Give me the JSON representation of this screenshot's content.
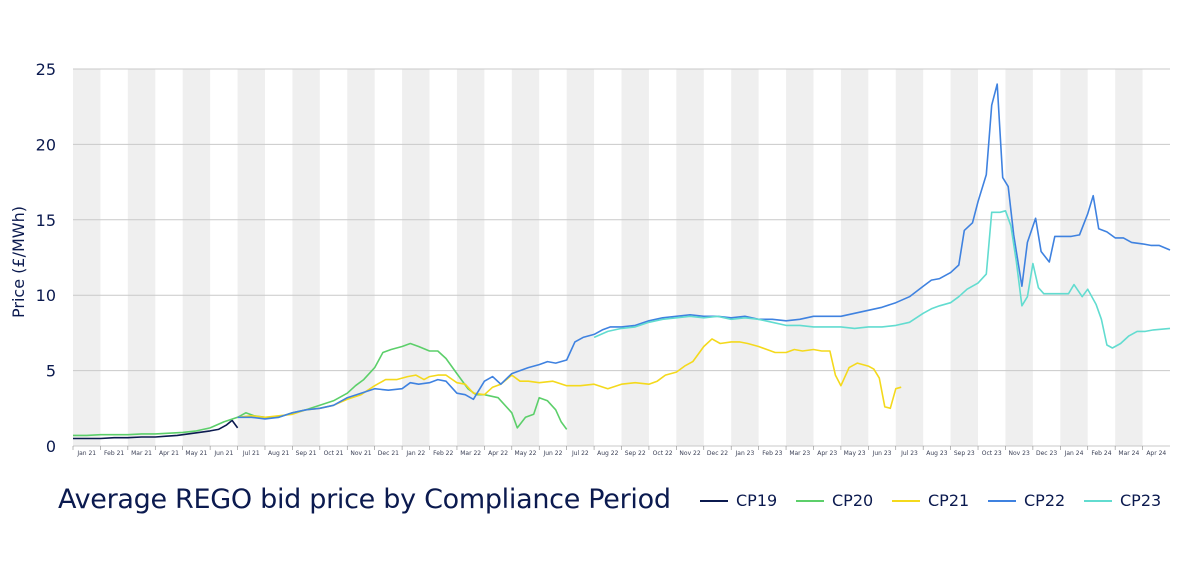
{
  "chart_data": {
    "type": "line",
    "title": "Average REGO bid price by Compliance Period",
    "ylabel": "Price (£/MWh)",
    "xlabel": "",
    "ylim": [
      0,
      25
    ],
    "yticks": [
      0,
      5,
      10,
      15,
      20,
      25
    ],
    "grid": "horizontal",
    "background_bands": "alternating months",
    "legend_position": "bottom-right",
    "x_ticks": [
      "Jan 21",
      "Feb 21",
      "Mar 21",
      "Apr 21",
      "May 21",
      "Jun 21",
      "Jul 21",
      "Aug 21",
      "Sep 21",
      "Oct 21",
      "Nov 21",
      "Dec 21",
      "Jan 22",
      "Feb 22",
      "Mar 22",
      "Apr 22",
      "May 22",
      "Jun 22",
      "Jul 22",
      "Aug 22",
      "Sep 22",
      "Oct 22",
      "Nov 22",
      "Dec 22",
      "Jan 23",
      "Feb 23",
      "Mar 23",
      "Apr 23",
      "May 23",
      "Jun 23",
      "Jul 23",
      "Aug 23",
      "Sep 23",
      "Oct 23",
      "Nov 23",
      "Dec 23",
      "Jan 24",
      "Feb 24",
      "Mar 24",
      "Apr 24"
    ],
    "series": [
      {
        "name": "CP19",
        "color": "#0b1a4f",
        "points": [
          [
            0.0,
            0.5
          ],
          [
            0.5,
            0.5
          ],
          [
            1.0,
            0.5
          ],
          [
            1.5,
            0.55
          ],
          [
            2.0,
            0.55
          ],
          [
            2.5,
            0.6
          ],
          [
            3.0,
            0.6
          ],
          [
            3.4,
            0.65
          ],
          [
            3.8,
            0.7
          ],
          [
            4.2,
            0.8
          ],
          [
            4.6,
            0.9
          ],
          [
            5.0,
            1.0
          ],
          [
            5.3,
            1.1
          ],
          [
            5.6,
            1.4
          ],
          [
            5.8,
            1.7
          ],
          [
            6.0,
            1.2
          ]
        ]
      },
      {
        "name": "CP20",
        "color": "#5ccf6a",
        "points": [
          [
            0.0,
            0.7
          ],
          [
            0.5,
            0.7
          ],
          [
            1.0,
            0.75
          ],
          [
            1.5,
            0.75
          ],
          [
            2.0,
            0.75
          ],
          [
            2.5,
            0.8
          ],
          [
            3.0,
            0.8
          ],
          [
            3.5,
            0.85
          ],
          [
            4.0,
            0.9
          ],
          [
            4.5,
            1.0
          ],
          [
            5.0,
            1.2
          ],
          [
            5.5,
            1.6
          ],
          [
            6.0,
            1.9
          ],
          [
            6.3,
            2.2
          ],
          [
            6.6,
            2.0
          ],
          [
            7.0,
            1.9
          ],
          [
            7.5,
            1.9
          ],
          [
            8.0,
            2.2
          ],
          [
            8.5,
            2.4
          ],
          [
            9.0,
            2.7
          ],
          [
            9.5,
            3.0
          ],
          [
            10.0,
            3.5
          ],
          [
            10.3,
            4.0
          ],
          [
            10.6,
            4.4
          ],
          [
            11.0,
            5.2
          ],
          [
            11.3,
            6.2
          ],
          [
            11.6,
            6.4
          ],
          [
            12.0,
            6.6
          ],
          [
            12.3,
            6.8
          ],
          [
            12.6,
            6.6
          ],
          [
            13.0,
            6.3
          ],
          [
            13.3,
            6.3
          ],
          [
            13.6,
            5.8
          ],
          [
            14.0,
            4.8
          ],
          [
            14.4,
            3.8
          ],
          [
            14.7,
            3.4
          ],
          [
            15.0,
            3.4
          ],
          [
            15.5,
            3.2
          ],
          [
            16.0,
            2.2
          ],
          [
            16.2,
            1.2
          ],
          [
            16.5,
            1.9
          ],
          [
            16.8,
            2.1
          ],
          [
            17.0,
            3.2
          ],
          [
            17.3,
            3.0
          ],
          [
            17.6,
            2.4
          ],
          [
            17.8,
            1.6
          ],
          [
            18.0,
            1.1
          ]
        ]
      },
      {
        "name": "CP21",
        "color": "#f4d91c",
        "points": [
          [
            6.0,
            1.9
          ],
          [
            6.5,
            2.0
          ],
          [
            7.0,
            1.9
          ],
          [
            7.5,
            2.0
          ],
          [
            8.0,
            2.1
          ],
          [
            8.5,
            2.4
          ],
          [
            9.0,
            2.5
          ],
          [
            9.5,
            2.7
          ],
          [
            10.0,
            3.1
          ],
          [
            10.5,
            3.4
          ],
          [
            11.0,
            4.0
          ],
          [
            11.4,
            4.4
          ],
          [
            11.8,
            4.4
          ],
          [
            12.2,
            4.6
          ],
          [
            12.5,
            4.7
          ],
          [
            12.8,
            4.4
          ],
          [
            13.0,
            4.6
          ],
          [
            13.3,
            4.7
          ],
          [
            13.6,
            4.7
          ],
          [
            14.0,
            4.2
          ],
          [
            14.3,
            4.1
          ],
          [
            14.6,
            3.5
          ],
          [
            15.0,
            3.4
          ],
          [
            15.3,
            3.9
          ],
          [
            15.6,
            4.1
          ],
          [
            16.0,
            4.7
          ],
          [
            16.3,
            4.3
          ],
          [
            16.6,
            4.3
          ],
          [
            17.0,
            4.2
          ],
          [
            17.5,
            4.3
          ],
          [
            18.0,
            4.0
          ],
          [
            18.5,
            4.0
          ],
          [
            19.0,
            4.1
          ],
          [
            19.5,
            3.8
          ],
          [
            20.0,
            4.1
          ],
          [
            20.5,
            4.2
          ],
          [
            21.0,
            4.1
          ],
          [
            21.3,
            4.3
          ],
          [
            21.6,
            4.7
          ],
          [
            22.0,
            4.9
          ],
          [
            22.3,
            5.3
          ],
          [
            22.6,
            5.6
          ],
          [
            23.0,
            6.6
          ],
          [
            23.3,
            7.1
          ],
          [
            23.6,
            6.8
          ],
          [
            24.0,
            6.9
          ],
          [
            24.3,
            6.9
          ],
          [
            24.6,
            6.8
          ],
          [
            25.0,
            6.6
          ],
          [
            25.3,
            6.4
          ],
          [
            25.6,
            6.2
          ],
          [
            26.0,
            6.2
          ],
          [
            26.3,
            6.4
          ],
          [
            26.6,
            6.3
          ],
          [
            27.0,
            6.4
          ],
          [
            27.3,
            6.3
          ],
          [
            27.6,
            6.3
          ],
          [
            27.8,
            4.7
          ],
          [
            28.0,
            4.0
          ],
          [
            28.3,
            5.2
          ],
          [
            28.6,
            5.5
          ],
          [
            29.0,
            5.3
          ],
          [
            29.2,
            5.1
          ],
          [
            29.4,
            4.5
          ],
          [
            29.6,
            2.6
          ],
          [
            29.8,
            2.5
          ],
          [
            30.0,
            3.8
          ],
          [
            30.2,
            3.9
          ]
        ]
      },
      {
        "name": "CP22",
        "color": "#3f82e0",
        "points": [
          [
            6.0,
            1.9
          ],
          [
            6.5,
            1.9
          ],
          [
            7.0,
            1.8
          ],
          [
            7.5,
            1.9
          ],
          [
            8.0,
            2.2
          ],
          [
            8.5,
            2.4
          ],
          [
            9.0,
            2.5
          ],
          [
            9.5,
            2.7
          ],
          [
            10.0,
            3.2
          ],
          [
            10.5,
            3.5
          ],
          [
            11.0,
            3.8
          ],
          [
            11.5,
            3.7
          ],
          [
            12.0,
            3.8
          ],
          [
            12.3,
            4.2
          ],
          [
            12.6,
            4.1
          ],
          [
            13.0,
            4.2
          ],
          [
            13.3,
            4.4
          ],
          [
            13.6,
            4.3
          ],
          [
            14.0,
            3.5
          ],
          [
            14.3,
            3.4
          ],
          [
            14.6,
            3.1
          ],
          [
            15.0,
            4.3
          ],
          [
            15.3,
            4.6
          ],
          [
            15.6,
            4.1
          ],
          [
            16.0,
            4.8
          ],
          [
            16.3,
            5.0
          ],
          [
            16.6,
            5.2
          ],
          [
            17.0,
            5.4
          ],
          [
            17.3,
            5.6
          ],
          [
            17.6,
            5.5
          ],
          [
            18.0,
            5.7
          ],
          [
            18.3,
            6.9
          ],
          [
            18.6,
            7.2
          ],
          [
            19.0,
            7.4
          ],
          [
            19.3,
            7.7
          ],
          [
            19.6,
            7.9
          ],
          [
            20.0,
            7.9
          ],
          [
            20.5,
            8.0
          ],
          [
            21.0,
            8.3
          ],
          [
            21.5,
            8.5
          ],
          [
            22.0,
            8.6
          ],
          [
            22.5,
            8.7
          ],
          [
            23.0,
            8.6
          ],
          [
            23.5,
            8.6
          ],
          [
            24.0,
            8.5
          ],
          [
            24.5,
            8.6
          ],
          [
            25.0,
            8.4
          ],
          [
            25.5,
            8.4
          ],
          [
            26.0,
            8.3
          ],
          [
            26.5,
            8.4
          ],
          [
            27.0,
            8.6
          ],
          [
            27.5,
            8.6
          ],
          [
            28.0,
            8.6
          ],
          [
            28.5,
            8.8
          ],
          [
            29.0,
            9.0
          ],
          [
            29.5,
            9.2
          ],
          [
            30.0,
            9.5
          ],
          [
            30.5,
            9.9
          ],
          [
            31.0,
            10.6
          ],
          [
            31.3,
            11.0
          ],
          [
            31.6,
            11.1
          ],
          [
            32.0,
            11.5
          ],
          [
            32.3,
            12.0
          ],
          [
            32.5,
            14.3
          ],
          [
            32.8,
            14.8
          ],
          [
            33.0,
            16.2
          ],
          [
            33.3,
            18.0
          ],
          [
            33.5,
            22.6
          ],
          [
            33.7,
            24.0
          ],
          [
            33.9,
            17.8
          ],
          [
            34.1,
            17.2
          ],
          [
            34.3,
            14.0
          ],
          [
            34.6,
            10.6
          ],
          [
            34.8,
            13.5
          ],
          [
            35.1,
            15.1
          ],
          [
            35.3,
            12.9
          ],
          [
            35.6,
            12.2
          ],
          [
            35.8,
            13.9
          ],
          [
            36.1,
            13.9
          ],
          [
            36.4,
            13.9
          ],
          [
            36.7,
            14.0
          ],
          [
            37.0,
            15.4
          ],
          [
            37.2,
            16.6
          ],
          [
            37.4,
            14.4
          ],
          [
            37.7,
            14.2
          ],
          [
            38.0,
            13.8
          ],
          [
            38.3,
            13.8
          ],
          [
            38.6,
            13.5
          ],
          [
            39.0,
            13.4
          ],
          [
            39.3,
            13.3
          ],
          [
            39.6,
            13.3
          ],
          [
            40.0,
            13.0
          ]
        ]
      },
      {
        "name": "CP23",
        "color": "#62dcd0",
        "points": [
          [
            19.0,
            7.2
          ],
          [
            19.5,
            7.6
          ],
          [
            20.0,
            7.8
          ],
          [
            20.5,
            7.9
          ],
          [
            21.0,
            8.2
          ],
          [
            21.5,
            8.4
          ],
          [
            22.0,
            8.5
          ],
          [
            22.5,
            8.6
          ],
          [
            23.0,
            8.5
          ],
          [
            23.5,
            8.6
          ],
          [
            24.0,
            8.4
          ],
          [
            24.5,
            8.5
          ],
          [
            25.0,
            8.4
          ],
          [
            25.5,
            8.2
          ],
          [
            26.0,
            8.0
          ],
          [
            26.5,
            8.0
          ],
          [
            27.0,
            7.9
          ],
          [
            27.5,
            7.9
          ],
          [
            28.0,
            7.9
          ],
          [
            28.5,
            7.8
          ],
          [
            29.0,
            7.9
          ],
          [
            29.5,
            7.9
          ],
          [
            30.0,
            8.0
          ],
          [
            30.5,
            8.2
          ],
          [
            31.0,
            8.8
          ],
          [
            31.3,
            9.1
          ],
          [
            31.6,
            9.3
          ],
          [
            32.0,
            9.5
          ],
          [
            32.3,
            9.9
          ],
          [
            32.6,
            10.4
          ],
          [
            33.0,
            10.8
          ],
          [
            33.3,
            11.4
          ],
          [
            33.5,
            15.5
          ],
          [
            33.8,
            15.5
          ],
          [
            34.0,
            15.6
          ],
          [
            34.2,
            14.6
          ],
          [
            34.4,
            12.2
          ],
          [
            34.6,
            9.3
          ],
          [
            34.8,
            9.9
          ],
          [
            35.0,
            12.1
          ],
          [
            35.2,
            10.5
          ],
          [
            35.4,
            10.1
          ],
          [
            35.7,
            10.1
          ],
          [
            36.0,
            10.1
          ],
          [
            36.3,
            10.1
          ],
          [
            36.5,
            10.7
          ],
          [
            36.8,
            9.9
          ],
          [
            37.0,
            10.4
          ],
          [
            37.3,
            9.4
          ],
          [
            37.5,
            8.4
          ],
          [
            37.7,
            6.7
          ],
          [
            37.9,
            6.5
          ],
          [
            38.2,
            6.8
          ],
          [
            38.5,
            7.3
          ],
          [
            38.8,
            7.6
          ],
          [
            39.1,
            7.6
          ],
          [
            39.4,
            7.7
          ],
          [
            40.0,
            7.8
          ]
        ]
      }
    ]
  }
}
